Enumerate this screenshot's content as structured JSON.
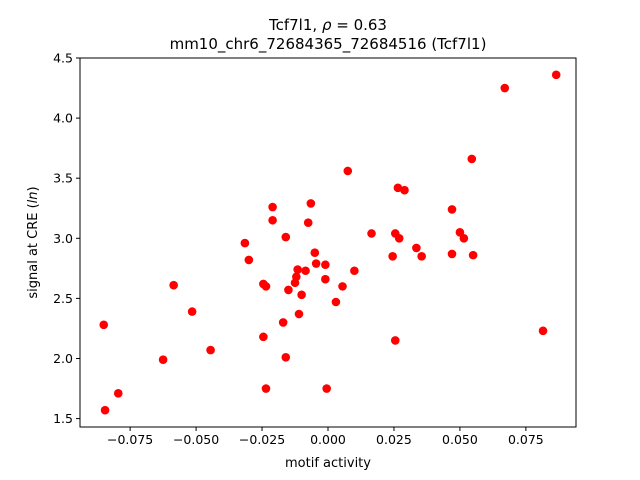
{
  "chart_data": {
    "type": "scatter",
    "title_line1_prefix": "Tcf7l1, ",
    "title_line1_rho_symbol": "ρ",
    "title_line1_rho_value": " = 0.63",
    "title_line2": "mm10_chr6_72684365_72684516 (Tcf7l1)",
    "xlabel": "motif activity",
    "ylabel_prefix": "signal at CRE (",
    "ylabel_italic": "ln",
    "ylabel_suffix": ")",
    "xlim": [
      -0.094,
      0.094
    ],
    "ylim": [
      1.43,
      4.5
    ],
    "xticks": [
      -0.075,
      -0.05,
      -0.025,
      0.0,
      0.025,
      0.05,
      0.075
    ],
    "xtick_labels": [
      "−0.075",
      "−0.050",
      "−0.025",
      "0.000",
      "0.025",
      "0.050",
      "0.075"
    ],
    "yticks": [
      1.5,
      2.0,
      2.5,
      3.0,
      3.5,
      4.0,
      4.5
    ],
    "ytick_labels": [
      "1.5",
      "2.0",
      "2.5",
      "3.0",
      "3.5",
      "4.0",
      "4.5"
    ],
    "grid": false,
    "marker_color": "#ff0000",
    "points": [
      {
        "x": -0.085,
        "y": 2.28
      },
      {
        "x": -0.0845,
        "y": 1.57
      },
      {
        "x": -0.0795,
        "y": 1.71
      },
      {
        "x": -0.0625,
        "y": 1.99
      },
      {
        "x": -0.0585,
        "y": 2.61
      },
      {
        "x": -0.0515,
        "y": 2.39
      },
      {
        "x": -0.0445,
        "y": 2.07
      },
      {
        "x": -0.0315,
        "y": 2.96
      },
      {
        "x": -0.03,
        "y": 2.82
      },
      {
        "x": -0.0245,
        "y": 2.62
      },
      {
        "x": -0.0235,
        "y": 2.6
      },
      {
        "x": -0.0245,
        "y": 2.18
      },
      {
        "x": -0.0235,
        "y": 1.75
      },
      {
        "x": -0.021,
        "y": 3.26
      },
      {
        "x": -0.021,
        "y": 3.15
      },
      {
        "x": -0.016,
        "y": 3.01
      },
      {
        "x": -0.017,
        "y": 2.3
      },
      {
        "x": -0.016,
        "y": 2.01
      },
      {
        "x": -0.015,
        "y": 2.57
      },
      {
        "x": -0.0125,
        "y": 2.63
      },
      {
        "x": -0.012,
        "y": 2.68
      },
      {
        "x": -0.0115,
        "y": 2.74
      },
      {
        "x": -0.011,
        "y": 2.37
      },
      {
        "x": -0.01,
        "y": 2.53
      },
      {
        "x": -0.0085,
        "y": 2.73
      },
      {
        "x": -0.0075,
        "y": 3.13
      },
      {
        "x": -0.0065,
        "y": 3.29
      },
      {
        "x": -0.005,
        "y": 2.88
      },
      {
        "x": -0.0045,
        "y": 2.79
      },
      {
        "x": -0.001,
        "y": 2.78
      },
      {
        "x": -0.001,
        "y": 2.66
      },
      {
        "x": -0.0005,
        "y": 1.75
      },
      {
        "x": 0.003,
        "y": 2.47
      },
      {
        "x": 0.0055,
        "y": 2.6
      },
      {
        "x": 0.0075,
        "y": 3.56
      },
      {
        "x": 0.01,
        "y": 2.73
      },
      {
        "x": 0.0165,
        "y": 3.04
      },
      {
        "x": 0.0245,
        "y": 2.85
      },
      {
        "x": 0.0255,
        "y": 3.04
      },
      {
        "x": 0.0265,
        "y": 3.42
      },
      {
        "x": 0.027,
        "y": 3.0
      },
      {
        "x": 0.0255,
        "y": 2.15
      },
      {
        "x": 0.029,
        "y": 3.4
      },
      {
        "x": 0.0335,
        "y": 2.92
      },
      {
        "x": 0.0355,
        "y": 2.85
      },
      {
        "x": 0.047,
        "y": 3.24
      },
      {
        "x": 0.047,
        "y": 2.87
      },
      {
        "x": 0.05,
        "y": 3.05
      },
      {
        "x": 0.0515,
        "y": 3.0
      },
      {
        "x": 0.0545,
        "y": 3.66
      },
      {
        "x": 0.055,
        "y": 2.86
      },
      {
        "x": 0.067,
        "y": 4.25
      },
      {
        "x": 0.0815,
        "y": 2.23
      },
      {
        "x": 0.0865,
        "y": 4.36
      }
    ]
  }
}
